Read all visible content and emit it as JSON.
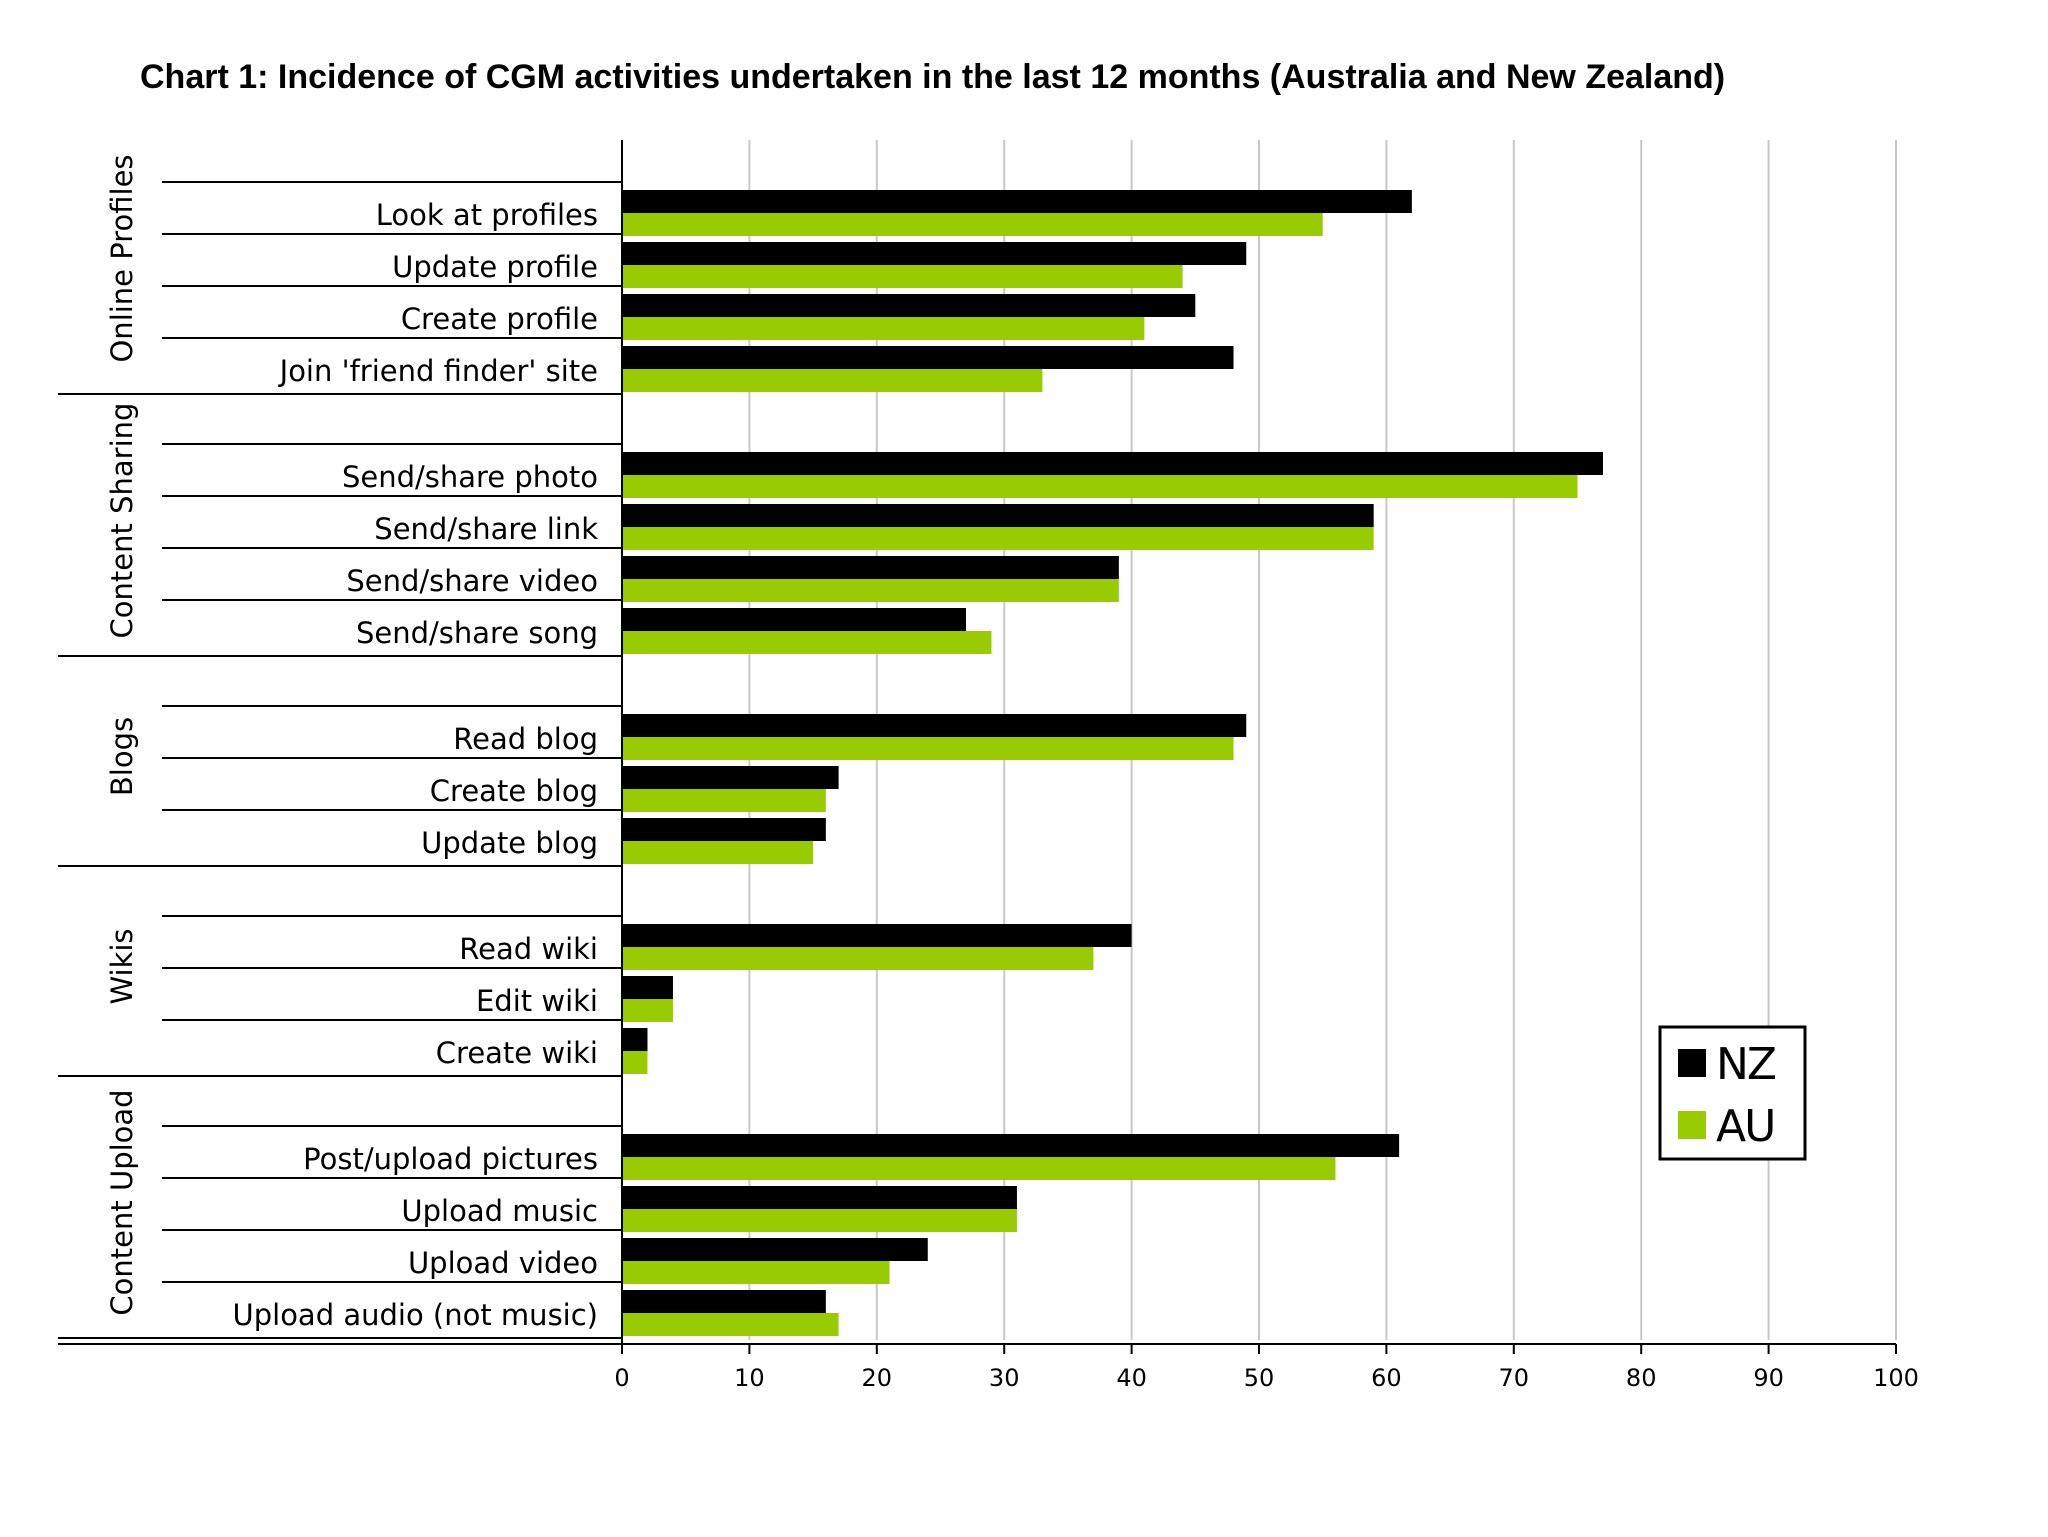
{
  "title": "Chart 1: Incidence of CGM activities undertaken in the last 12 months (Australia and New Zealand)",
  "colors": {
    "NZ": "#000000",
    "AU": "#99cc00",
    "grid": "#c8c8c8"
  },
  "chart_data": {
    "type": "bar",
    "orientation": "horizontal",
    "title": "Chart 1: Incidence of CGM activities undertaken in the last 12 months (Australia and New Zealand)",
    "xlim": [
      0,
      100
    ],
    "xticks": [
      0,
      10,
      20,
      30,
      40,
      50,
      60,
      70,
      80,
      90,
      100
    ],
    "grid": true,
    "legend_position": "bottom-right",
    "series_names": [
      "NZ",
      "AU"
    ],
    "groups": [
      {
        "name": "Online Profiles",
        "items": [
          {
            "label": "Look at profiles",
            "NZ": 62,
            "AU": 55
          },
          {
            "label": "Update profile",
            "NZ": 49,
            "AU": 44
          },
          {
            "label": "Create profile",
            "NZ": 45,
            "AU": 41
          },
          {
            "label": "Join 'friend finder' site",
            "NZ": 48,
            "AU": 33
          }
        ]
      },
      {
        "name": "Content Sharing",
        "items": [
          {
            "label": "Send/share photo",
            "NZ": 77,
            "AU": 75
          },
          {
            "label": "Send/share link",
            "NZ": 59,
            "AU": 59
          },
          {
            "label": "Send/share video",
            "NZ": 39,
            "AU": 39
          },
          {
            "label": "Send/share song",
            "NZ": 27,
            "AU": 29
          }
        ]
      },
      {
        "name": "Blogs",
        "items": [
          {
            "label": "Read blog",
            "NZ": 49,
            "AU": 48
          },
          {
            "label": "Create blog",
            "NZ": 17,
            "AU": 16
          },
          {
            "label": "Update blog",
            "NZ": 16,
            "AU": 15
          }
        ]
      },
      {
        "name": "Wikis",
        "items": [
          {
            "label": "Read wiki",
            "NZ": 40,
            "AU": 37
          },
          {
            "label": "Edit wiki",
            "NZ": 4,
            "AU": 4
          },
          {
            "label": "Create wiki",
            "NZ": 2,
            "AU": 2
          }
        ]
      },
      {
        "name": "Content Upload",
        "items": [
          {
            "label": "Post/upload pictures",
            "NZ": 61,
            "AU": 56
          },
          {
            "label": "Upload music",
            "NZ": 31,
            "AU": 31
          },
          {
            "label": "Upload video",
            "NZ": 24,
            "AU": 21
          },
          {
            "label": "Upload audio (not music)",
            "NZ": 16,
            "AU": 17
          }
        ]
      }
    ]
  }
}
